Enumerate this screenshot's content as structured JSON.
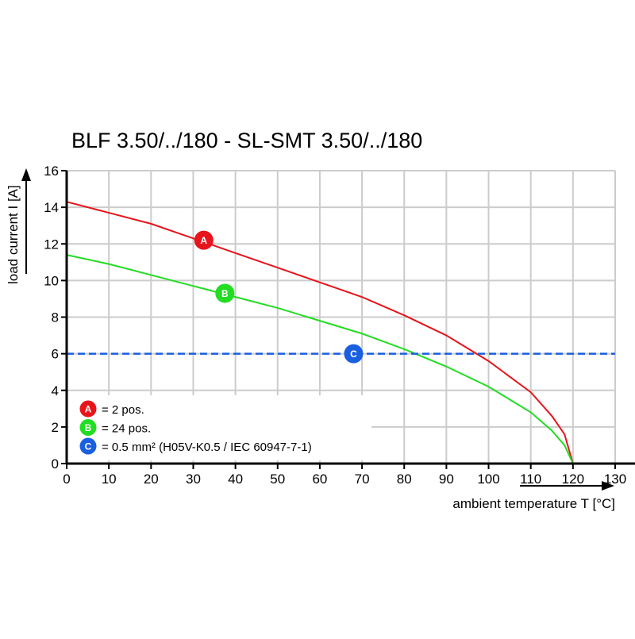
{
  "chart_data": {
    "type": "line",
    "title": "BLF 3.50/../180 - SL-SMT 3.50/../180",
    "xlabel": "ambient temperature T [°C]",
    "ylabel": "load current I [A]",
    "xlim": [
      0,
      130
    ],
    "ylim": [
      0,
      16
    ],
    "xticks": [
      0,
      10,
      20,
      30,
      40,
      50,
      60,
      70,
      80,
      90,
      100,
      110,
      120,
      130
    ],
    "yticks": [
      0,
      2,
      4,
      6,
      8,
      10,
      12,
      14,
      16
    ],
    "grid": true,
    "series": [
      {
        "name": "A",
        "legend": "= 2 pos.",
        "color": "#e8141b",
        "style": "solid",
        "x": [
          0,
          10,
          20,
          30,
          40,
          50,
          60,
          70,
          80,
          90,
          100,
          110,
          115,
          118,
          120
        ],
        "y": [
          14.3,
          13.7,
          13.1,
          12.3,
          11.5,
          10.7,
          9.9,
          9.1,
          8.1,
          7.0,
          5.6,
          3.9,
          2.6,
          1.6,
          0
        ],
        "marker": {
          "label": "A",
          "x": 32.5,
          "y": 12.2
        }
      },
      {
        "name": "B",
        "legend": "= 24 pos.",
        "color": "#22dd22",
        "style": "solid",
        "x": [
          0,
          10,
          20,
          30,
          40,
          50,
          60,
          70,
          80,
          90,
          100,
          110,
          115,
          118,
          120
        ],
        "y": [
          11.4,
          10.9,
          10.3,
          9.7,
          9.1,
          8.5,
          7.8,
          7.1,
          6.25,
          5.3,
          4.2,
          2.8,
          1.8,
          1.0,
          0
        ],
        "marker": {
          "label": "B",
          "x": 37.5,
          "y": 9.3
        }
      },
      {
        "name": "C",
        "legend": "= 0.5 mm² (H05V-K0.5 / IEC 60947-7-1)",
        "color": "#1a5fe0",
        "style": "dashed",
        "x": [
          0,
          130
        ],
        "y": [
          6,
          6
        ],
        "marker": {
          "label": "C",
          "x": 68,
          "y": 6
        }
      }
    ],
    "legend_position": "bottom-left"
  }
}
